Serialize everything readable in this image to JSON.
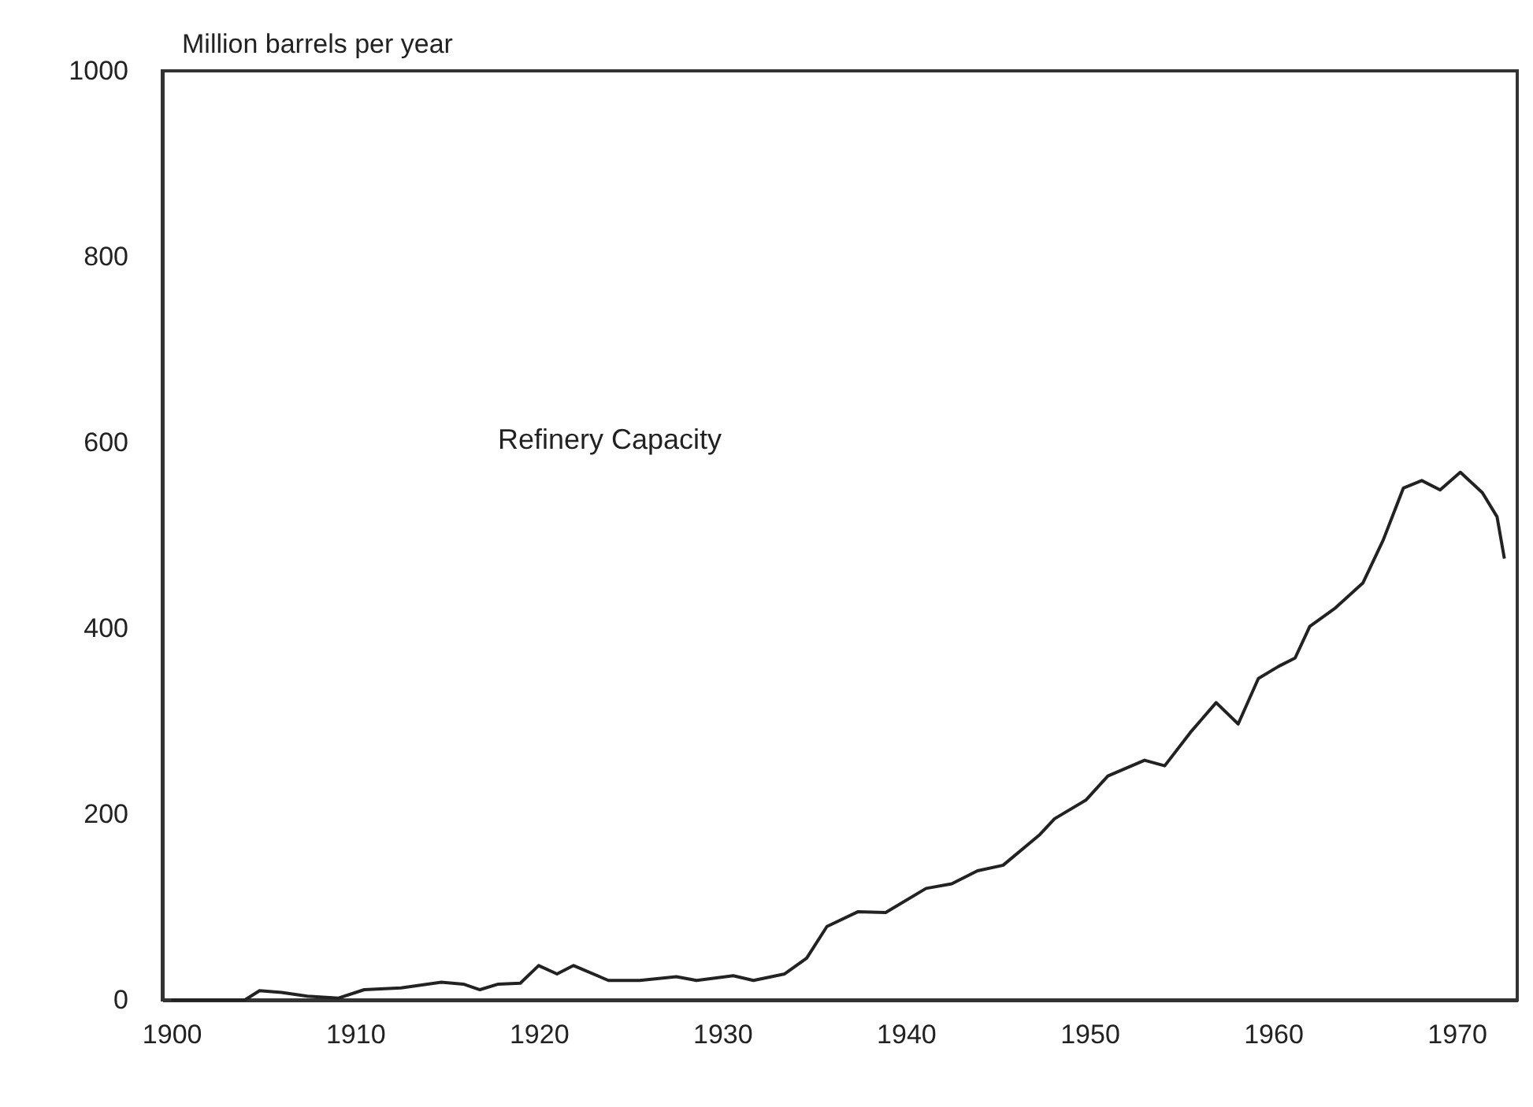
{
  "chart_data": {
    "type": "line",
    "ylabel": "Million barrels per year",
    "x": [
      1900,
      1904,
      1904.8,
      1906,
      1907.4,
      1909.1,
      1910.5,
      1912.5,
      1914.7,
      1915.9,
      1916.8,
      1917.8,
      1919,
      1920,
      1921,
      1921.9,
      1923.8,
      1925.5,
      1927.5,
      1928.6,
      1930.6,
      1931.7,
      1933.4,
      1934.6,
      1935.7,
      1937.4,
      1938.9,
      1941.1,
      1942.5,
      1943.9,
      1945.3,
      1947.3,
      1948.1,
      1949.8,
      1951,
      1953,
      1954.1,
      1955.5,
      1956.9,
      1958.1,
      1959.2,
      1960.3,
      1961.2,
      1962,
      1963.4,
      1964.9,
      1966,
      1967.1,
      1968.1,
      1969.1,
      1970.2,
      1971.4,
      1972.2,
      1972.6
    ],
    "series": [
      {
        "name": "Refinery Capacity",
        "color": "#222222",
        "values": [
          0,
          0,
          10,
          8,
          4,
          2,
          11,
          13,
          19,
          17,
          11,
          17,
          18,
          37,
          28,
          37,
          21,
          21,
          25,
          21,
          26,
          21,
          28,
          45,
          79,
          95,
          94,
          120,
          125,
          139,
          145,
          178,
          195,
          215,
          241,
          258,
          252,
          288,
          320,
          297,
          346,
          359,
          368,
          402,
          422,
          449,
          495,
          551,
          559,
          549,
          568,
          546,
          520,
          475
        ]
      }
    ],
    "xlim": [
      1899.5,
      1973.3
    ],
    "xticks": [
      1900,
      1910,
      1920,
      1930,
      1940,
      1950,
      1960,
      1970
    ],
    "ylim": [
      0,
      1000
    ],
    "yticks": [
      0,
      200,
      400,
      600,
      800,
      1000
    ],
    "grid": false,
    "legend": false,
    "marker": "none",
    "line_style": "solid"
  }
}
